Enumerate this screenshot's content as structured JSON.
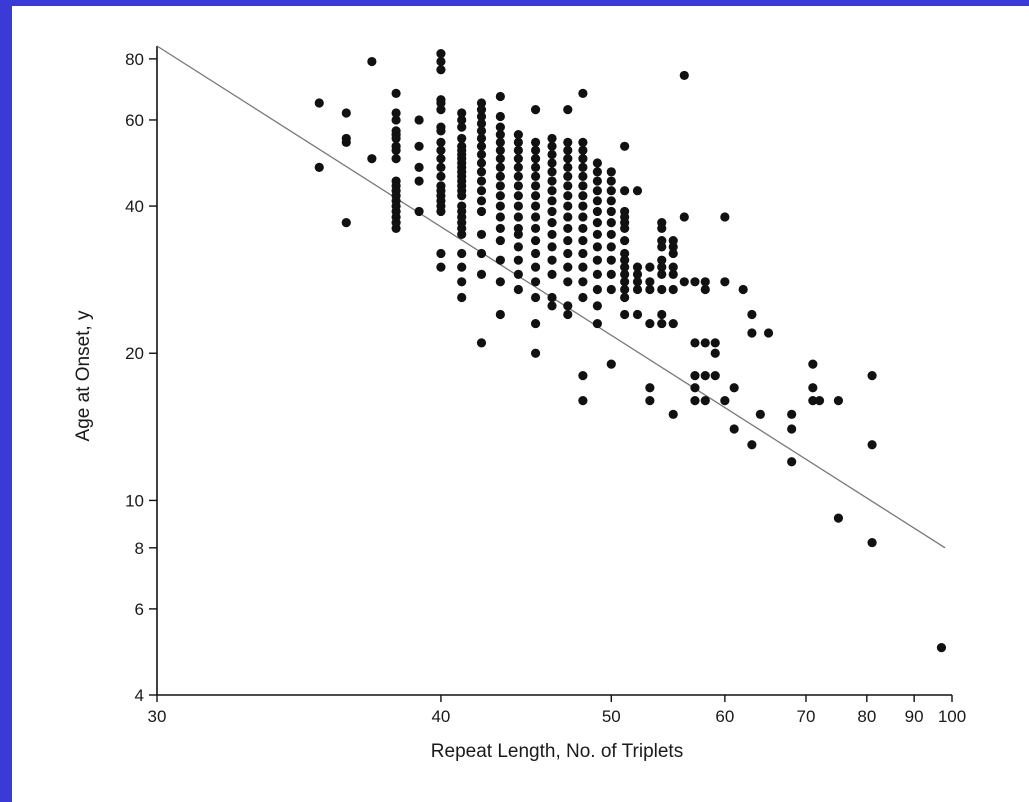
{
  "colors": {
    "border": "#3a3ad6",
    "background": "#ffffff",
    "ink": "#111111",
    "fit_line": "#777777"
  },
  "chart_data": {
    "type": "scatter",
    "title": "",
    "xlabel": "Repeat Length, No. of Triplets",
    "ylabel": "Age at Onset, y",
    "x_scale": "reciprocal",
    "y_scale": "log",
    "xlim": [
      30,
      100
    ],
    "ylim": [
      4,
      85
    ],
    "x_ticks": [
      30,
      40,
      50,
      60,
      70,
      80,
      90,
      100
    ],
    "x_tick_labels": [
      "30",
      "40",
      "50",
      "60",
      "70",
      "80",
      "90",
      "100"
    ],
    "y_ticks": [
      4,
      6,
      8,
      10,
      20,
      40,
      60,
      80
    ],
    "y_tick_labels": [
      "4",
      "6",
      "8",
      "10",
      "20",
      "40",
      "60",
      "80"
    ],
    "grid": false,
    "legend": "none",
    "fit_line": {
      "x": [
        30,
        98
      ],
      "y": [
        85,
        8
      ]
    },
    "points": [
      [
        35,
        65
      ],
      [
        35,
        48
      ],
      [
        36,
        62
      ],
      [
        36,
        55
      ],
      [
        36,
        54
      ],
      [
        36,
        37
      ],
      [
        37,
        79
      ],
      [
        37,
        50
      ],
      [
        38,
        68
      ],
      [
        38,
        62
      ],
      [
        38,
        60
      ],
      [
        38,
        57
      ],
      [
        38,
        56
      ],
      [
        38,
        55
      ],
      [
        38,
        53
      ],
      [
        38,
        52
      ],
      [
        38,
        50
      ],
      [
        38,
        45
      ],
      [
        38,
        44
      ],
      [
        38,
        43
      ],
      [
        38,
        42
      ],
      [
        38,
        41
      ],
      [
        38,
        40
      ],
      [
        38,
        39
      ],
      [
        38,
        38
      ],
      [
        38,
        37
      ],
      [
        38,
        36
      ],
      [
        39,
        60
      ],
      [
        39,
        53
      ],
      [
        39,
        48
      ],
      [
        39,
        45
      ],
      [
        39,
        39
      ],
      [
        40,
        82
      ],
      [
        40,
        79
      ],
      [
        40,
        76
      ],
      [
        40,
        66
      ],
      [
        40,
        65
      ],
      [
        40,
        63
      ],
      [
        40,
        58
      ],
      [
        40,
        57
      ],
      [
        40,
        54
      ],
      [
        40,
        52
      ],
      [
        40,
        50
      ],
      [
        40,
        48
      ],
      [
        40,
        46
      ],
      [
        40,
        44
      ],
      [
        40,
        43
      ],
      [
        40,
        42
      ],
      [
        40,
        41
      ],
      [
        40,
        40
      ],
      [
        40,
        39
      ],
      [
        40,
        32
      ],
      [
        40,
        30
      ],
      [
        41,
        62
      ],
      [
        41,
        60
      ],
      [
        41,
        58
      ],
      [
        41,
        55
      ],
      [
        41,
        53
      ],
      [
        41,
        52
      ],
      [
        41,
        51
      ],
      [
        41,
        50
      ],
      [
        41,
        49
      ],
      [
        41,
        48
      ],
      [
        41,
        47
      ],
      [
        41,
        46
      ],
      [
        41,
        45
      ],
      [
        41,
        44
      ],
      [
        41,
        43
      ],
      [
        41,
        42
      ],
      [
        41,
        40
      ],
      [
        41,
        39
      ],
      [
        41,
        38
      ],
      [
        41,
        37
      ],
      [
        41,
        36
      ],
      [
        41,
        35
      ],
      [
        41,
        32
      ],
      [
        41,
        30
      ],
      [
        41,
        28
      ],
      [
        41,
        26
      ],
      [
        42,
        65
      ],
      [
        42,
        63
      ],
      [
        42,
        61
      ],
      [
        42,
        59
      ],
      [
        42,
        57
      ],
      [
        42,
        55
      ],
      [
        42,
        53
      ],
      [
        42,
        51
      ],
      [
        42,
        49
      ],
      [
        42,
        47
      ],
      [
        42,
        45
      ],
      [
        42,
        43
      ],
      [
        42,
        41
      ],
      [
        42,
        39
      ],
      [
        42,
        35
      ],
      [
        42,
        32
      ],
      [
        42,
        29
      ],
      [
        42,
        21
      ],
      [
        43,
        67
      ],
      [
        43,
        61
      ],
      [
        43,
        58
      ],
      [
        43,
        56
      ],
      [
        43,
        54
      ],
      [
        43,
        52
      ],
      [
        43,
        50
      ],
      [
        43,
        48
      ],
      [
        43,
        46
      ],
      [
        43,
        44
      ],
      [
        43,
        42
      ],
      [
        43,
        40
      ],
      [
        43,
        38
      ],
      [
        43,
        36
      ],
      [
        43,
        34
      ],
      [
        43,
        31
      ],
      [
        43,
        28
      ],
      [
        43,
        24
      ],
      [
        44,
        56
      ],
      [
        44,
        54
      ],
      [
        44,
        52
      ],
      [
        44,
        50
      ],
      [
        44,
        48
      ],
      [
        44,
        46
      ],
      [
        44,
        44
      ],
      [
        44,
        42
      ],
      [
        44,
        40
      ],
      [
        44,
        38
      ],
      [
        44,
        36
      ],
      [
        44,
        35
      ],
      [
        44,
        33
      ],
      [
        44,
        31
      ],
      [
        44,
        29
      ],
      [
        44,
        27
      ],
      [
        45,
        63
      ],
      [
        45,
        54
      ],
      [
        45,
        52
      ],
      [
        45,
        50
      ],
      [
        45,
        48
      ],
      [
        45,
        46
      ],
      [
        45,
        44
      ],
      [
        45,
        42
      ],
      [
        45,
        40
      ],
      [
        45,
        38
      ],
      [
        45,
        36
      ],
      [
        45,
        34
      ],
      [
        45,
        32
      ],
      [
        45,
        30
      ],
      [
        45,
        28
      ],
      [
        45,
        26
      ],
      [
        45,
        23
      ],
      [
        45,
        20
      ],
      [
        46,
        55
      ],
      [
        46,
        53
      ],
      [
        46,
        51
      ],
      [
        46,
        49
      ],
      [
        46,
        47
      ],
      [
        46,
        45
      ],
      [
        46,
        43
      ],
      [
        46,
        41
      ],
      [
        46,
        39
      ],
      [
        46,
        37
      ],
      [
        46,
        35
      ],
      [
        46,
        33
      ],
      [
        46,
        31
      ],
      [
        46,
        29
      ],
      [
        46,
        26
      ],
      [
        46,
        25
      ],
      [
        47,
        63
      ],
      [
        47,
        54
      ],
      [
        47,
        52
      ],
      [
        47,
        50
      ],
      [
        47,
        48
      ],
      [
        47,
        46
      ],
      [
        47,
        44
      ],
      [
        47,
        42
      ],
      [
        47,
        40
      ],
      [
        47,
        38
      ],
      [
        47,
        36
      ],
      [
        47,
        34
      ],
      [
        47,
        32
      ],
      [
        47,
        30
      ],
      [
        47,
        28
      ],
      [
        47,
        25
      ],
      [
        47,
        24
      ],
      [
        48,
        68
      ],
      [
        48,
        54
      ],
      [
        48,
        52
      ],
      [
        48,
        50
      ],
      [
        48,
        48
      ],
      [
        48,
        46
      ],
      [
        48,
        44
      ],
      [
        48,
        42
      ],
      [
        48,
        40
      ],
      [
        48,
        38
      ],
      [
        48,
        36
      ],
      [
        48,
        34
      ],
      [
        48,
        32
      ],
      [
        48,
        30
      ],
      [
        48,
        28
      ],
      [
        48,
        26
      ],
      [
        48,
        18
      ],
      [
        48,
        16
      ],
      [
        49,
        49
      ],
      [
        49,
        47
      ],
      [
        49,
        45
      ],
      [
        49,
        43
      ],
      [
        49,
        41
      ],
      [
        49,
        39
      ],
      [
        49,
        37
      ],
      [
        49,
        35
      ],
      [
        49,
        33
      ],
      [
        49,
        31
      ],
      [
        49,
        29
      ],
      [
        49,
        27
      ],
      [
        49,
        25
      ],
      [
        49,
        23
      ],
      [
        50,
        47
      ],
      [
        50,
        45
      ],
      [
        50,
        43
      ],
      [
        50,
        41
      ],
      [
        50,
        39
      ],
      [
        50,
        37
      ],
      [
        50,
        35
      ],
      [
        50,
        33
      ],
      [
        50,
        31
      ],
      [
        50,
        29
      ],
      [
        50,
        27
      ],
      [
        50,
        19
      ],
      [
        51,
        53
      ],
      [
        51,
        43
      ],
      [
        51,
        39
      ],
      [
        51,
        38
      ],
      [
        51,
        37
      ],
      [
        51,
        36
      ],
      [
        51,
        34
      ],
      [
        51,
        32
      ],
      [
        51,
        31
      ],
      [
        51,
        30
      ],
      [
        51,
        29
      ],
      [
        51,
        28
      ],
      [
        51,
        27
      ],
      [
        51,
        26
      ],
      [
        51,
        24
      ],
      [
        52,
        43
      ],
      [
        52,
        30
      ],
      [
        52,
        29
      ],
      [
        52,
        28
      ],
      [
        52,
        27
      ],
      [
        52,
        24
      ],
      [
        53,
        30
      ],
      [
        53,
        28
      ],
      [
        53,
        27
      ],
      [
        53,
        23
      ],
      [
        53,
        17
      ],
      [
        53,
        16
      ],
      [
        54,
        37
      ],
      [
        54,
        36
      ],
      [
        54,
        34
      ],
      [
        54,
        33
      ],
      [
        54,
        31
      ],
      [
        54,
        30
      ],
      [
        54,
        29
      ],
      [
        54,
        27
      ],
      [
        54,
        24
      ],
      [
        54,
        23
      ],
      [
        55,
        34
      ],
      [
        55,
        33
      ],
      [
        55,
        32
      ],
      [
        55,
        30
      ],
      [
        55,
        29
      ],
      [
        55,
        27
      ],
      [
        55,
        23
      ],
      [
        55,
        15
      ],
      [
        56,
        74
      ],
      [
        56,
        38
      ],
      [
        56,
        28
      ],
      [
        57,
        28
      ],
      [
        57,
        21
      ],
      [
        57,
        18
      ],
      [
        57,
        17
      ],
      [
        57,
        16
      ],
      [
        58,
        28
      ],
      [
        58,
        27
      ],
      [
        58,
        21
      ],
      [
        58,
        18
      ],
      [
        58,
        16
      ],
      [
        59,
        21
      ],
      [
        59,
        20
      ],
      [
        59,
        18
      ],
      [
        60,
        38
      ],
      [
        60,
        28
      ],
      [
        60,
        16
      ],
      [
        61,
        17
      ],
      [
        61,
        14
      ],
      [
        62,
        27
      ],
      [
        63,
        24
      ],
      [
        63,
        22
      ],
      [
        63,
        13
      ],
      [
        64,
        15
      ],
      [
        65,
        22
      ],
      [
        68,
        15
      ],
      [
        68,
        14
      ],
      [
        68,
        12
      ],
      [
        71,
        19
      ],
      [
        71,
        17
      ],
      [
        71,
        16
      ],
      [
        72,
        16
      ],
      [
        75,
        16
      ],
      [
        75,
        9.2
      ],
      [
        81,
        18
      ],
      [
        81,
        13
      ],
      [
        81,
        8.2
      ],
      [
        97,
        5
      ]
    ]
  }
}
